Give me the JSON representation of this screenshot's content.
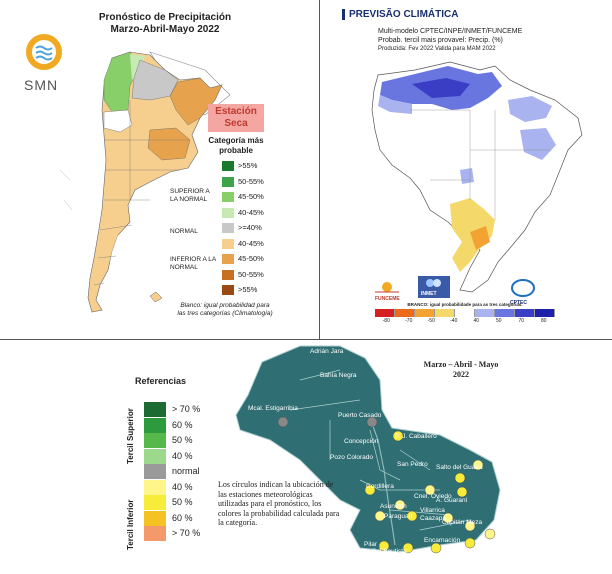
{
  "argentina": {
    "title_line1": "Pronóstico de Precipitación",
    "title_line2": "Marzo-Abril-Mayo 2022",
    "logo_text": "SMN",
    "season_box_line1": "Estación",
    "season_box_line2": "Seca",
    "category_title": "Categoría más probable",
    "groups": {
      "superior": "SUPERIOR A LA NORMAL",
      "normal": "NORMAL",
      "inferior": "INFERIOR A LA NORMAL"
    },
    "legend": [
      {
        "label": ">55%",
        "color": "#1a7a2c"
      },
      {
        "label": "50-55%",
        "color": "#3fa34d"
      },
      {
        "label": "45-50%",
        "color": "#88cf6a"
      },
      {
        "label": "40-45%",
        "color": "#c7eab2"
      },
      {
        "label": ">=40%",
        "color": "#c8c8c8"
      },
      {
        "label": "40-45%",
        "color": "#f6cf8e"
      },
      {
        "label": "45-50%",
        "color": "#e6a24c"
      },
      {
        "label": "50-55%",
        "color": "#c96f23"
      },
      {
        "label": ">55%",
        "color": "#9a4a12"
      }
    ],
    "note_line1": "Blanco: igual probabilidad para",
    "note_line2": "las tres categorías (Climatología)"
  },
  "brasil": {
    "title": "PREVISÃO CLIMÁTICA",
    "sub1": "Multi-modelo CPTEC/INPE/INMET/FUNCEME",
    "sub2": "Probab. tercil mais provavel: Precip. (%)",
    "sub3": "Produzida: Fev 2022   Valida para MAM 2022",
    "logos": [
      "FUNCEME",
      "INMET",
      "CPTEC"
    ],
    "legend_note": "BRANCO: igual probabilidade para as tres categorias.",
    "legend_ticks": [
      "-80",
      "-70",
      "-50",
      "-40",
      "40",
      "50",
      "70",
      "80"
    ],
    "legend_colors": [
      "#d42020",
      "#ec6a1a",
      "#f3a331",
      "#f4d96a",
      "#ffffff",
      "#a9b3ef",
      "#6a76df",
      "#3a3ec4",
      "#1f1fa8"
    ]
  },
  "paraguay": {
    "ref_title": "Referencias",
    "tercil_superior": "Tercil Superior",
    "tercil_inferior": "Tercil Inferior",
    "legend": [
      {
        "label": "> 70 %",
        "color": "#1b6b32"
      },
      {
        "label": "60 %",
        "color": "#2e9a3e"
      },
      {
        "label": "50 %",
        "color": "#56b84a"
      },
      {
        "label": "40 %",
        "color": "#9cd98c"
      },
      {
        "label": "normal",
        "color": "#9a9a9a"
      },
      {
        "label": "40 %",
        "color": "#fff68a"
      },
      {
        "label": "50 %",
        "color": "#f7ec3a"
      },
      {
        "label": "60 %",
        "color": "#f4c323"
      },
      {
        "label": "> 70 %",
        "color": "#f49a6a"
      }
    ],
    "title_line1": "Marzo – Abril - Mayo",
    "title_line2": "2022",
    "circles_note": "Los círculos indican la ubicación de las estaciones meteorológicas utilizadas para el pronóstico, los colores la probabilidad calculada para la categoría.",
    "places": [
      "Adrián Jara",
      "Bahía Negra",
      "Mcal. Estigarribia",
      "Puerto Casado",
      "Concepción",
      "P. J. Caballero",
      "Pozo Colorado",
      "San Pedro",
      "Salto del Guairá",
      "Cordillera",
      "Cnel. Oviedo",
      "A. Guaraní",
      "Asunción",
      "Villarrica",
      "Paraguarí",
      "Caazapá",
      "Capitán Meza",
      "Encarnación",
      "Pilar",
      "S.J.Bautista"
    ]
  }
}
